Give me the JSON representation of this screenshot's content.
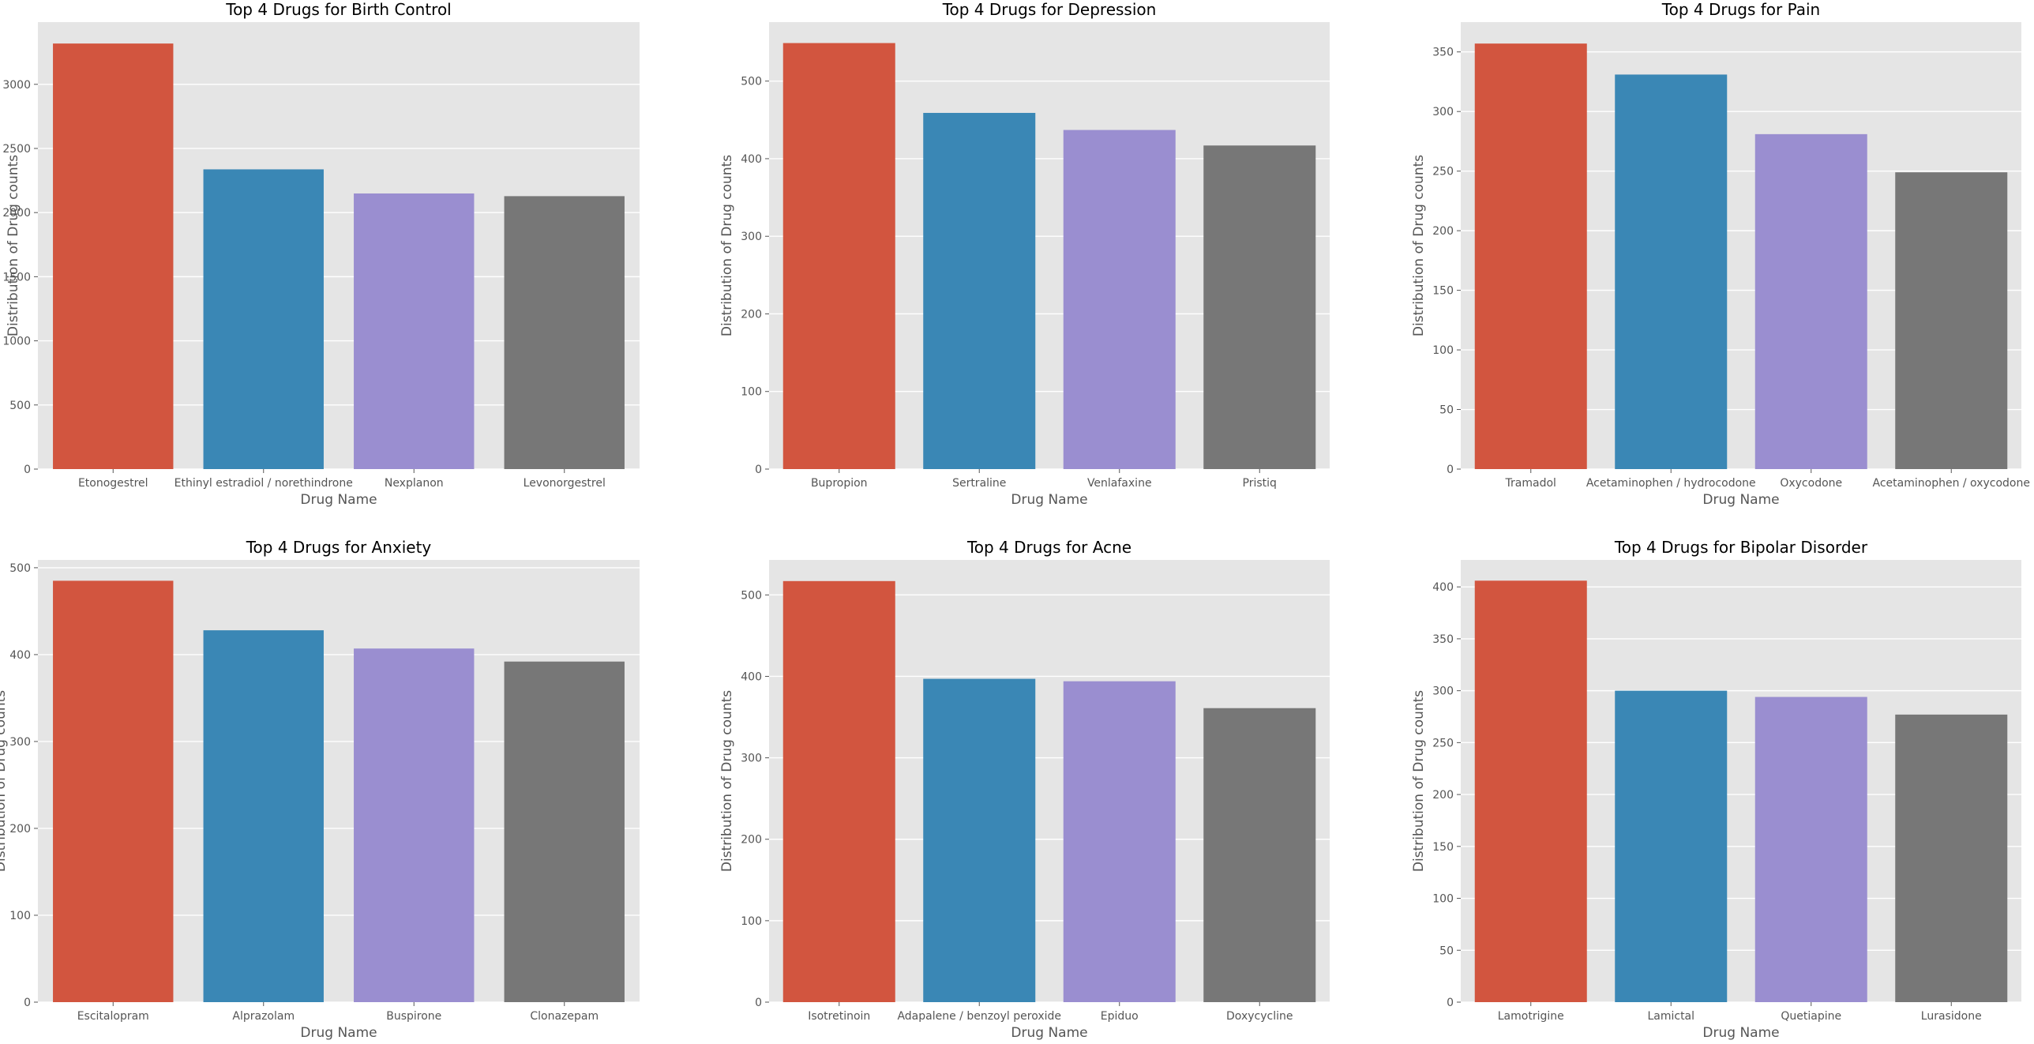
{
  "figure": {
    "colors": {
      "panel_bg": "#E5E5E5",
      "grid": "#FFFFFF",
      "tick_text": "#555555",
      "label_text": "#555555",
      "title_text": "#000000",
      "bars": [
        "#D2553F",
        "#3A87B5",
        "#9A8ED0",
        "#777777"
      ]
    }
  },
  "chart_data": [
    {
      "type": "bar",
      "title": "Top 4 Drugs for Birth Control",
      "xlabel": "Drug Name",
      "ylabel": "Distribution of Drug counts",
      "categories": [
        "Etonogestrel",
        "Ethinyl estradiol / norethindrone",
        "Nexplanon",
        "Levonorgestrel"
      ],
      "values": [
        3318,
        2337,
        2149,
        2128
      ],
      "ylim": [
        0,
        3485
      ],
      "yticks": [
        0,
        500,
        1000,
        1500,
        2000,
        2500,
        3000
      ],
      "grid": true
    },
    {
      "type": "bar",
      "title": "Top 4 Drugs for Depression",
      "xlabel": "Drug Name",
      "ylabel": "Distribution of Drug counts",
      "categories": [
        "Bupropion",
        "Sertraline",
        "Venlafaxine",
        "Pristiq"
      ],
      "values": [
        549,
        459,
        437,
        417
      ],
      "ylim": [
        0,
        576
      ],
      "yticks": [
        0,
        100,
        200,
        300,
        400,
        500
      ],
      "grid": true
    },
    {
      "type": "bar",
      "title": "Top 4 Drugs for Pain",
      "xlabel": "Drug Name",
      "ylabel": "Distribution of Drug counts",
      "categories": [
        "Tramadol",
        "Acetaminophen / hydrocodone",
        "Oxycodone",
        "Acetaminophen / oxycodone"
      ],
      "values": [
        357,
        331,
        281,
        249
      ],
      "ylim": [
        0,
        375
      ],
      "yticks": [
        0,
        50,
        100,
        150,
        200,
        250,
        300,
        350
      ],
      "grid": true
    },
    {
      "type": "bar",
      "title": "Top 4 Drugs for Anxiety",
      "xlabel": "Drug Name",
      "ylabel": "Distribution of Drug counts",
      "categories": [
        "Escitalopram",
        "Alprazolam",
        "Buspirone",
        "Clonazepam"
      ],
      "values": [
        485,
        428,
        407,
        392
      ],
      "ylim": [
        0,
        509
      ],
      "yticks": [
        0,
        100,
        200,
        300,
        400,
        500
      ],
      "grid": true
    },
    {
      "type": "bar",
      "title": "Top 4 Drugs for Acne",
      "xlabel": "Drug Name",
      "ylabel": "Distribution of Drug counts",
      "categories": [
        "Isotretinoin",
        "Adapalene / benzoyl peroxide",
        "Epiduo",
        "Doxycycline"
      ],
      "values": [
        517,
        397,
        394,
        361
      ],
      "ylim": [
        0,
        543
      ],
      "yticks": [
        0,
        100,
        200,
        300,
        400,
        500
      ],
      "grid": true
    },
    {
      "type": "bar",
      "title": "Top 4 Drugs for Bipolar Disorder",
      "xlabel": "Drug Name",
      "ylabel": "Distribution of Drug counts",
      "categories": [
        "Lamotrigine",
        "Lamictal",
        "Quetiapine",
        "Lurasidone"
      ],
      "values": [
        406,
        300,
        294,
        277
      ],
      "ylim": [
        0,
        426
      ],
      "yticks": [
        0,
        50,
        100,
        150,
        200,
        250,
        300,
        350,
        400
      ],
      "grid": true
    }
  ]
}
